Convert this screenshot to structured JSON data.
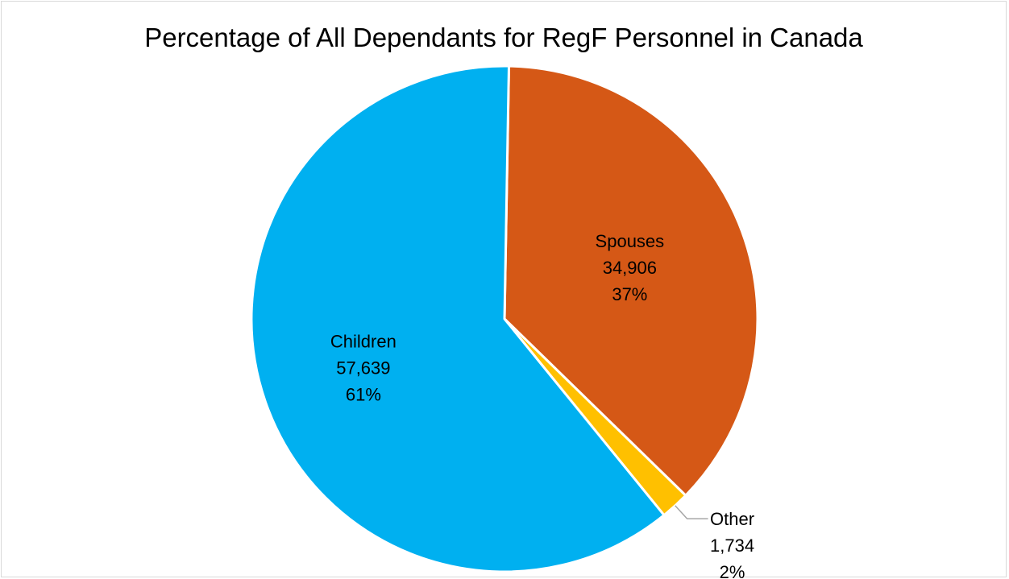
{
  "chart_data": {
    "type": "pie",
    "title": "Percentage of All Dependants for RegF Personnel in Canada",
    "slices": [
      {
        "name": "Spouses",
        "value": 34906,
        "value_label": "34,906",
        "percent_label": "37%",
        "color": "#D55816"
      },
      {
        "name": "Other",
        "value": 1734,
        "value_label": "1,734",
        "percent_label": "2%",
        "color": "#FFC000"
      },
      {
        "name": "Children",
        "value": 57639,
        "value_label": "57,639",
        "percent_label": "61%",
        "color": "#00B0F0"
      }
    ],
    "start_angle_deg": 1,
    "direction": "clockwise",
    "legend": "none",
    "separator_color": "#FFFFFF",
    "leader_line_color": "#A6A6A6"
  }
}
